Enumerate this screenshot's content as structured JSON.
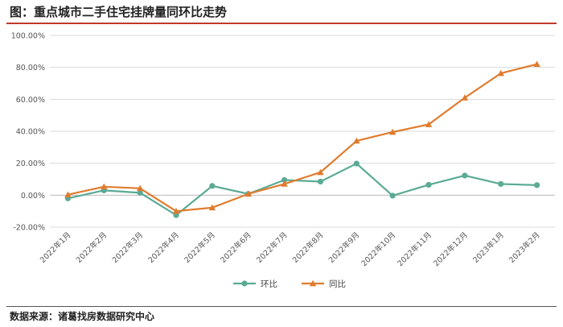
{
  "header": {
    "title": "图：重点城市二手住宅挂牌量同环比走势"
  },
  "footer": {
    "source": "数据来源：诸葛找房数据研究中心"
  },
  "colors": {
    "hb": "#5aaa94",
    "tb": "#e07b2e",
    "grid": "#d9d9d9",
    "accent_line": "#c0392b"
  },
  "chart_data": {
    "type": "line",
    "title": "图：重点城市二手住宅挂牌量同环比走势",
    "x": [
      "2022年1月",
      "2022年2月",
      "2022年3月",
      "2022年4月",
      "2022年5月",
      "2022年6月",
      "2022年7月",
      "2022年8月",
      "2022年9月",
      "2022年10月",
      "2022年11月",
      "2022年12月",
      "2023年1月",
      "2023年2月"
    ],
    "yticks": [
      "100.00%",
      "80.00%",
      "60.00%",
      "40.00%",
      "20.00%",
      "0.00%",
      "-20.00%"
    ],
    "ylim": [
      -20,
      100
    ],
    "grid": true,
    "legend_position": "bottom",
    "series": [
      {
        "name": "环比",
        "marker": "circle",
        "values": [
          -2.0,
          3.0,
          1.5,
          -12.5,
          5.8,
          0.8,
          9.5,
          8.5,
          19.8,
          -0.3,
          6.5,
          12.3,
          7.0,
          6.3
        ]
      },
      {
        "name": "同比",
        "marker": "triangle",
        "values": [
          0.3,
          5.3,
          4.3,
          -10.0,
          -7.8,
          0.8,
          7.0,
          14.3,
          34.0,
          39.5,
          44.3,
          61.0,
          76.3,
          82.0
        ]
      }
    ]
  }
}
